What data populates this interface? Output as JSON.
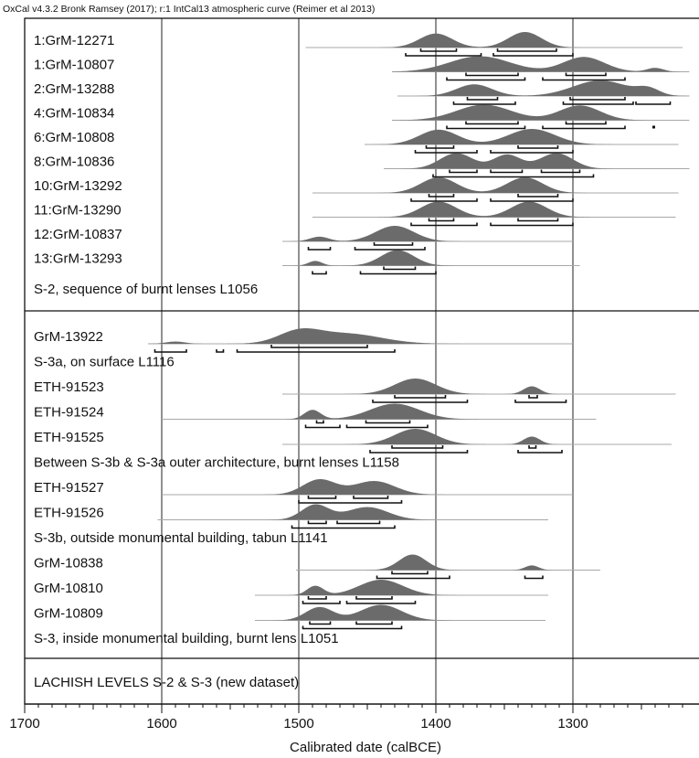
{
  "header": "OxCal v4.3.2 Bronk Ramsey (2017); r:1 IntCal13 atmospheric curve (Reimer et al 2013)",
  "chart_data": {
    "type": "range-plot",
    "xlabel": "Calibrated date (calBCE)",
    "xlim": [
      1700,
      1215
    ],
    "x_axis_direction": "reversed",
    "xticks": [
      1700,
      1600,
      1500,
      1400,
      1300
    ],
    "grid": true,
    "colors": {
      "distribution": "#6b6b6b",
      "line": "#a8a8a8",
      "text": "#111111"
    },
    "panels": [
      {
        "rows": [
          {
            "label": "1:GrM-12271",
            "span": [
              1495,
              1220
            ],
            "peaks": [
              [
                1400,
                12,
                0.9
              ],
              [
                1335,
                12,
                1.0
              ]
            ],
            "ranges1": [
              [
                1411,
                1385
              ],
              [
                1355,
                1312
              ]
            ],
            "ranges2": [
              [
                1422,
                1367
              ],
              [
                1358,
                1300
              ]
            ]
          },
          {
            "label": "1:GrM-10807",
            "span": [
              1432,
              1215
            ],
            "peaks": [
              [
                1368,
                22,
                1.0
              ],
              [
                1292,
                15,
                0.95
              ],
              [
                1240,
                6,
                0.25
              ]
            ],
            "ranges1": [
              [
                1378,
                1340
              ],
              [
                1305,
                1276
              ]
            ],
            "ranges2": [
              [
                1392,
                1335
              ],
              [
                1322,
                1262
              ]
            ]
          },
          {
            "label": "2:GrM-13288",
            "span": [
              1428,
              1215
            ],
            "peaks": [
              [
                1372,
                13,
                0.75
              ],
              [
                1280,
                20,
                1.0
              ],
              [
                1245,
                8,
                0.4
              ]
            ],
            "ranges1": [
              [
                1377,
                1355
              ],
              [
                1302,
                1262
              ]
            ],
            "ranges2": [
              [
                1387,
                1342
              ],
              [
                1307,
                1256
              ],
              [
                1254,
                1229
              ]
            ]
          },
          {
            "label": "4:GrM-10834",
            "span": [
              1432,
              1215
            ],
            "peaks": [
              [
                1365,
                20,
                1.0
              ],
              [
                1295,
                15,
                0.95
              ]
            ],
            "ranges1": [
              [
                1378,
                1340
              ],
              [
                1305,
                1276
              ]
            ],
            "ranges2": [
              [
                1392,
                1335
              ],
              [
                1322,
                1262
              ]
            ],
            "points": [
              1241
            ]
          },
          {
            "label": "6:GrM-10808",
            "span": [
              1452,
              1223
            ],
            "peaks": [
              [
                1398,
                14,
                0.95
              ],
              [
                1330,
                17,
                1.0
              ]
            ],
            "ranges1": [
              [
                1407,
                1387
              ],
              [
                1340,
                1311
              ]
            ],
            "ranges2": [
              [
                1415,
                1370
              ],
              [
                1360,
                1300
              ]
            ]
          },
          {
            "label": "8:GrM-10836",
            "span": [
              1438,
              1215
            ],
            "peaks": [
              [
                1385,
                12,
                1.0
              ],
              [
                1348,
                10,
                0.9
              ],
              [
                1312,
                12,
                1.0
              ]
            ],
            "ranges1": [
              [
                1390,
                1370
              ],
              [
                1360,
                1337
              ],
              [
                1323,
                1295
              ]
            ],
            "ranges2": [
              [
                1402,
                1285
              ]
            ]
          },
          {
            "label": "10:GrM-13292",
            "span": [
              1490,
              1223
            ],
            "peaks": [
              [
                1398,
                13,
                1.0
              ],
              [
                1335,
                13,
                1.0
              ]
            ],
            "ranges1": [
              [
                1405,
                1387
              ],
              [
                1340,
                1311
              ]
            ],
            "ranges2": [
              [
                1418,
                1370
              ],
              [
                1360,
                1300
              ]
            ]
          },
          {
            "label": "11:GrM-13290",
            "span": [
              1490,
              1225
            ],
            "peaks": [
              [
                1398,
                13,
                1.0
              ],
              [
                1332,
                13,
                1.0
              ]
            ],
            "ranges1": [
              [
                1405,
                1387
              ],
              [
                1340,
                1311
              ]
            ],
            "ranges2": [
              [
                1418,
                1370
              ],
              [
                1360,
                1300
              ]
            ]
          },
          {
            "label": "12:GrM-10837",
            "span": [
              1512,
              1300
            ],
            "peaks": [
              [
                1430,
                14,
                1.0
              ],
              [
                1485,
                7,
                0.3
              ]
            ],
            "ranges1": [
              [
                1445,
                1417
              ]
            ],
            "ranges2": [
              [
                1493,
                1477
              ],
              [
                1459,
                1408
              ]
            ]
          },
          {
            "label": "13:GrM-13293",
            "span": [
              1512,
              1295
            ],
            "peaks": [
              [
                1428,
                12,
                1.0
              ],
              [
                1488,
                5,
                0.3
              ]
            ],
            "ranges1": [
              [
                1438,
                1415
              ]
            ],
            "ranges2": [
              [
                1490,
                1480
              ],
              [
                1455,
                1400
              ]
            ]
          }
        ],
        "footer": "S-2, sequence of burnt lenses L1056"
      },
      {
        "rows": [
          {
            "label": "GrM-13922",
            "span": [
              1610,
              1300
            ],
            "peaks": [
              [
                1500,
                15,
                1.0
              ],
              [
                1465,
                25,
                0.9
              ],
              [
                1590,
                7,
                0.2
              ]
            ],
            "ranges1": [
              [
                1520,
                1450
              ]
            ],
            "ranges2": [
              [
                1605,
                1582
              ],
              [
                1560,
                1555
              ],
              [
                1545,
                1430
              ]
            ]
          },
          {
            "label": "S-3a, on surface L1116",
            "type": "text"
          },
          {
            "label": "ETH-91523",
            "span": [
              1512,
              1225
            ],
            "peaks": [
              [
                1415,
                15,
                1.0
              ],
              [
                1330,
                6,
                0.5
              ]
            ],
            "ranges1": [
              [
                1430,
                1393
              ],
              [
                1332,
                1326
              ]
            ],
            "ranges2": [
              [
                1446,
                1377
              ],
              [
                1342,
                1305
              ]
            ]
          },
          {
            "label": "ETH-91524",
            "span": [
              1600,
              1283
            ],
            "peaks": [
              [
                1490,
                6,
                0.6
              ],
              [
                1430,
                18,
                1.0
              ]
            ],
            "ranges1": [
              [
                1487,
                1482
              ],
              [
                1451,
                1419
              ]
            ],
            "ranges2": [
              [
                1495,
                1470
              ],
              [
                1465,
                1406
              ]
            ]
          },
          {
            "label": "ETH-91525",
            "span": [
              1512,
              1228
            ],
            "peaks": [
              [
                1415,
                15,
                1.0
              ],
              [
                1330,
                6,
                0.5
              ]
            ],
            "ranges1": [
              [
                1432,
                1395
              ],
              [
                1332,
                1327
              ]
            ],
            "ranges2": [
              [
                1448,
                1377
              ],
              [
                1340,
                1308
              ]
            ]
          },
          {
            "label": "Between S-3b & S-3a outer architecture, burnt lenses L1158",
            "type": "text"
          },
          {
            "label": "ETH-91527",
            "span": [
              1600,
              1300
            ],
            "peaks": [
              [
                1485,
                12,
                1.0
              ],
              [
                1445,
                15,
                0.9
              ]
            ],
            "ranges1": [
              [
                1493,
                1473
              ],
              [
                1460,
                1435
              ]
            ],
            "ranges2": [
              [
                1500,
                1425
              ]
            ]
          },
          {
            "label": "ETH-91526",
            "span": [
              1603,
              1318
            ],
            "peaks": [
              [
                1488,
                10,
                1.0
              ],
              [
                1450,
                15,
                0.85
              ]
            ],
            "ranges1": [
              [
                1493,
                1480
              ],
              [
                1472,
                1441
              ]
            ],
            "ranges2": [
              [
                1505,
                1430
              ]
            ]
          },
          {
            "label": "S-3b, outside monumental building, tabun L1141",
            "type": "text"
          },
          {
            "label": "GrM-10838",
            "span": [
              1502,
              1280
            ],
            "peaks": [
              [
                1417,
                10,
                1.0
              ],
              [
                1330,
                5,
                0.3
              ]
            ],
            "ranges1": [
              [
                1432,
                1406
              ]
            ],
            "ranges2": [
              [
                1443,
                1390
              ],
              [
                1335,
                1322
              ]
            ]
          },
          {
            "label": "GrM-10810",
            "span": [
              1532,
              1318
            ],
            "peaks": [
              [
                1488,
                6,
                0.6
              ],
              [
                1440,
                16,
                1.0
              ]
            ],
            "ranges1": [
              [
                1493,
                1480
              ],
              [
                1458,
                1432
              ]
            ],
            "ranges2": [
              [
                1497,
                1470
              ],
              [
                1465,
                1415
              ]
            ]
          },
          {
            "label": "GrM-10809",
            "span": [
              1532,
              1320
            ],
            "peaks": [
              [
                1485,
                10,
                0.85
              ],
              [
                1440,
                15,
                1.0
              ]
            ],
            "ranges1": [
              [
                1492,
                1477
              ],
              [
                1458,
                1432
              ]
            ],
            "ranges2": [
              [
                1497,
                1425
              ]
            ]
          },
          {
            "label": "S-3, inside monumental building, burnt lens L1051",
            "type": "text"
          }
        ]
      }
    ],
    "footer_label": "LACHISH LEVELS S-2 & S-3 (new dataset)"
  }
}
